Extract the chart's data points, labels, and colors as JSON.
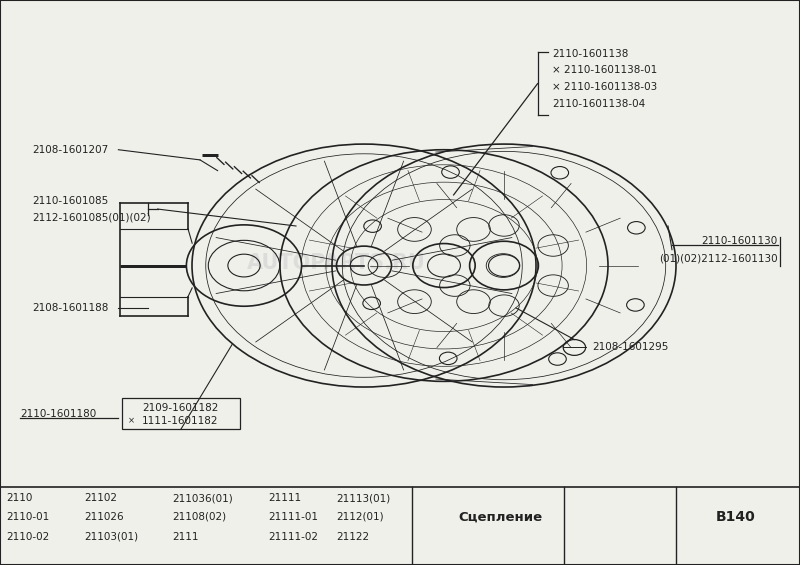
{
  "bg_color": "#f0f0eb",
  "diagram_bg": "#f0f0eb",
  "border_color": "#222222",
  "text_color": "#222222",
  "watermark_text": "AUTOPARTS.RU",
  "footer_row1": [
    "2110",
    "21102",
    "211036(01)",
    "21111",
    "21113(01)"
  ],
  "footer_row2": [
    "2110-01",
    "211026",
    "21108(02)",
    "21111-01",
    "2112(01)"
  ],
  "footer_row3": [
    "2110-02",
    "21103(01)",
    "2111",
    "21111-02",
    "21122"
  ],
  "footer_center": "Сцепление",
  "footer_right": "B140"
}
